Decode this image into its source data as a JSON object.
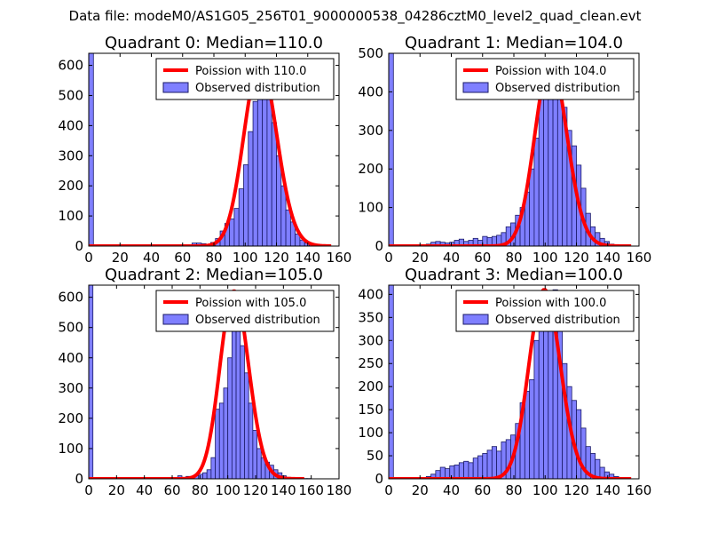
{
  "suptitle": "Data file: modeM0/AS1G05_256T01_9000000538_04286cztM0_level2_quad_clean.evt",
  "colors": {
    "bar_fill": "#7f7fff",
    "bar_edge": "#1a1a66",
    "curve": "#ff0000"
  },
  "chart_data": [
    {
      "type": "bar",
      "title": "Quadrant 0: Median=110.0",
      "median": 110,
      "xlim": [
        0,
        160
      ],
      "ylim": [
        0,
        640
      ],
      "xticks": [
        0,
        20,
        40,
        60,
        80,
        100,
        120,
        140,
        160
      ],
      "yticks": [
        0,
        100,
        200,
        300,
        400,
        500,
        600
      ],
      "legend": {
        "position": "upper right",
        "entries": [
          "Poission with 110.0",
          "Observed distribution"
        ]
      },
      "bin_width": 3,
      "bars": [
        [
          0,
          640
        ],
        [
          66,
          10
        ],
        [
          69,
          10
        ],
        [
          72,
          8
        ],
        [
          75,
          5
        ],
        [
          78,
          12
        ],
        [
          81,
          25
        ],
        [
          84,
          50
        ],
        [
          87,
          75
        ],
        [
          90,
          90
        ],
        [
          93,
          125
        ],
        [
          96,
          190
        ],
        [
          99,
          270
        ],
        [
          102,
          380
        ],
        [
          105,
          480
        ],
        [
          108,
          610
        ],
        [
          111,
          610
        ],
        [
          114,
          520
        ],
        [
          117,
          410
        ],
        [
          120,
          300
        ],
        [
          123,
          200
        ],
        [
          126,
          120
        ],
        [
          129,
          80
        ],
        [
          132,
          40
        ],
        [
          135,
          20
        ],
        [
          138,
          10
        ],
        [
          141,
          5
        ],
        [
          144,
          2
        ]
      ],
      "poisson_peak": 610
    },
    {
      "type": "bar",
      "title": "Quadrant 1: Median=104.0",
      "median": 104,
      "xlim": [
        0,
        160
      ],
      "ylim": [
        0,
        500
      ],
      "xticks": [
        0,
        20,
        40,
        60,
        80,
        100,
        120,
        140,
        160
      ],
      "yticks": [
        0,
        100,
        200,
        300,
        400,
        500
      ],
      "legend": {
        "position": "upper right",
        "entries": [
          "Poission with 104.0",
          "Observed distribution"
        ]
      },
      "bin_width": 3,
      "bars": [
        [
          0,
          500
        ],
        [
          24,
          5
        ],
        [
          27,
          10
        ],
        [
          30,
          12
        ],
        [
          33,
          10
        ],
        [
          36,
          8
        ],
        [
          39,
          10
        ],
        [
          42,
          15
        ],
        [
          45,
          18
        ],
        [
          48,
          12
        ],
        [
          51,
          15
        ],
        [
          54,
          20
        ],
        [
          57,
          15
        ],
        [
          60,
          25
        ],
        [
          63,
          22
        ],
        [
          66,
          25
        ],
        [
          69,
          28
        ],
        [
          72,
          35
        ],
        [
          75,
          50
        ],
        [
          78,
          60
        ],
        [
          81,
          80
        ],
        [
          84,
          100
        ],
        [
          87,
          140
        ],
        [
          90,
          200
        ],
        [
          93,
          280
        ],
        [
          96,
          400
        ],
        [
          99,
          450
        ],
        [
          102,
          420
        ],
        [
          105,
          470
        ],
        [
          108,
          380
        ],
        [
          111,
          360
        ],
        [
          114,
          300
        ],
        [
          117,
          260
        ],
        [
          120,
          210
        ],
        [
          123,
          150
        ],
        [
          126,
          85
        ],
        [
          129,
          50
        ],
        [
          132,
          35
        ],
        [
          135,
          20
        ],
        [
          138,
          12
        ],
        [
          141,
          5
        ]
      ],
      "poisson_peak": 480
    },
    {
      "type": "bar",
      "title": "Quadrant 2: Median=105.0",
      "median": 105,
      "xlim": [
        0,
        180
      ],
      "ylim": [
        0,
        640
      ],
      "xticks": [
        0,
        20,
        40,
        60,
        80,
        100,
        120,
        140,
        160,
        180
      ],
      "yticks": [
        0,
        100,
        200,
        300,
        400,
        500,
        600
      ],
      "legend": {
        "position": "upper right",
        "entries": [
          "Poission with 105.0",
          "Observed distribution"
        ]
      },
      "bin_width": 3,
      "bars": [
        [
          0,
          640
        ],
        [
          64,
          10
        ],
        [
          67,
          5
        ],
        [
          70,
          8
        ],
        [
          73,
          5
        ],
        [
          76,
          10
        ],
        [
          79,
          15
        ],
        [
          82,
          20
        ],
        [
          85,
          30
        ],
        [
          88,
          70
        ],
        [
          91,
          230
        ],
        [
          94,
          250
        ],
        [
          97,
          300
        ],
        [
          100,
          400
        ],
        [
          103,
          600
        ],
        [
          106,
          520
        ],
        [
          109,
          440
        ],
        [
          112,
          350
        ],
        [
          115,
          250
        ],
        [
          118,
          160
        ],
        [
          121,
          100
        ],
        [
          124,
          70
        ],
        [
          127,
          55
        ],
        [
          130,
          45
        ],
        [
          133,
          30
        ],
        [
          136,
          20
        ],
        [
          139,
          10
        ],
        [
          142,
          5
        ],
        [
          145,
          3
        ],
        [
          148,
          2
        ],
        [
          151,
          1
        ],
        [
          154,
          1
        ],
        [
          157,
          1
        ]
      ],
      "poisson_peak": 620
    },
    {
      "type": "bar",
      "title": "Quadrant 3: Median=100.0",
      "median": 100,
      "xlim": [
        0,
        160
      ],
      "ylim": [
        0,
        420
      ],
      "xticks": [
        0,
        20,
        40,
        60,
        80,
        100,
        120,
        140,
        160
      ],
      "yticks": [
        0,
        50,
        100,
        150,
        200,
        250,
        300,
        350,
        400
      ],
      "legend": {
        "position": "upper right",
        "entries": [
          "Poission with 100.0",
          "Observed distribution"
        ]
      },
      "bin_width": 3,
      "bars": [
        [
          0,
          420
        ],
        [
          24,
          5
        ],
        [
          27,
          10
        ],
        [
          30,
          18
        ],
        [
          33,
          25
        ],
        [
          36,
          22
        ],
        [
          39,
          28
        ],
        [
          42,
          30
        ],
        [
          45,
          35
        ],
        [
          48,
          38
        ],
        [
          51,
          35
        ],
        [
          54,
          45
        ],
        [
          57,
          50
        ],
        [
          60,
          55
        ],
        [
          63,
          62
        ],
        [
          66,
          70
        ],
        [
          69,
          60
        ],
        [
          72,
          80
        ],
        [
          75,
          85
        ],
        [
          78,
          95
        ],
        [
          81,
          120
        ],
        [
          84,
          165
        ],
        [
          87,
          190
        ],
        [
          90,
          215
        ],
        [
          93,
          300
        ],
        [
          96,
          320
        ],
        [
          99,
          360
        ],
        [
          102,
          380
        ],
        [
          105,
          410
        ],
        [
          108,
          350
        ],
        [
          111,
          250
        ],
        [
          114,
          200
        ],
        [
          117,
          170
        ],
        [
          120,
          150
        ],
        [
          123,
          110
        ],
        [
          126,
          70
        ],
        [
          129,
          55
        ],
        [
          132,
          42
        ],
        [
          135,
          25
        ],
        [
          138,
          15
        ],
        [
          141,
          10
        ],
        [
          144,
          5
        ],
        [
          147,
          3
        ]
      ],
      "poisson_peak": 410
    }
  ]
}
